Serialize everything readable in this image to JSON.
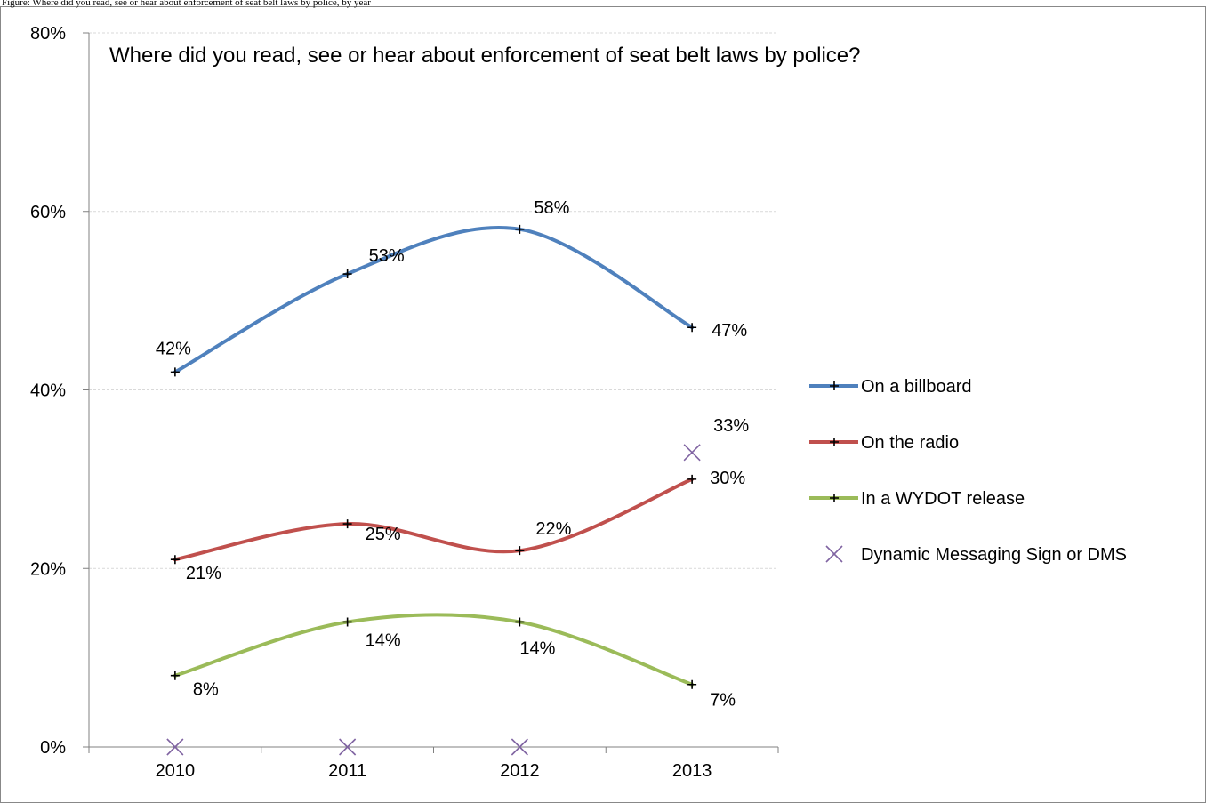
{
  "caption": "Figure: Where did you read, see or hear about enforcement of seat belt laws by police, by year",
  "chart_data": {
    "type": "line",
    "title": "Where did you read, see or hear about enforcement of seat belt laws by police?",
    "categories": [
      "2010",
      "2011",
      "2012",
      "2013"
    ],
    "ylim": [
      0,
      80
    ],
    "yticks": [
      0,
      20,
      40,
      60,
      80
    ],
    "ytick_labels": [
      "0%",
      "20%",
      "40%",
      "60%",
      "80%"
    ],
    "grid": true,
    "legend_position": "right",
    "series": [
      {
        "name": "On a billboard",
        "color": "#4F81BD",
        "marker": "plus",
        "line": true,
        "values": [
          42,
          53,
          58,
          47
        ],
        "labels": [
          "42%",
          "53%",
          "58%",
          "47%"
        ]
      },
      {
        "name": "On the radio",
        "color": "#C0504D",
        "marker": "plus",
        "line": true,
        "values": [
          21,
          25,
          22,
          30
        ],
        "labels": [
          "21%",
          "25%",
          "22%",
          "30%"
        ]
      },
      {
        "name": "In a WYDOT release",
        "color": "#9BBB59",
        "marker": "plus",
        "line": true,
        "values": [
          8,
          14,
          14,
          7
        ],
        "labels": [
          "8%",
          "14%",
          "14%",
          "7%"
        ]
      },
      {
        "name": "Dynamic Messaging Sign or DMS",
        "color": "#8064A2",
        "marker": "x",
        "line": false,
        "values": [
          0,
          0,
          0,
          33
        ],
        "labels": [
          "",
          "",
          "",
          "33%"
        ]
      }
    ]
  }
}
